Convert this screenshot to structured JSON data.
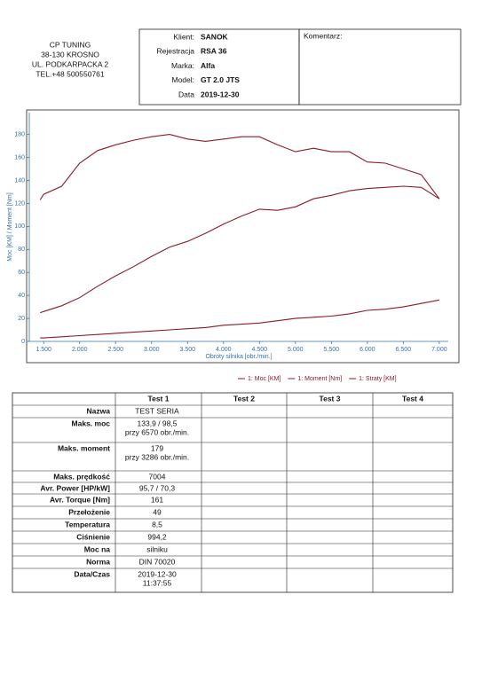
{
  "header": {
    "company": [
      "CP TUNING",
      "38-130 KROSNO",
      "UL. PODKARPACKA 2",
      "TEL.+48 500550761"
    ],
    "fields": [
      {
        "label": "Klient:",
        "value": "SANOK"
      },
      {
        "label": "Rejestracja",
        "value": "RSA 36"
      },
      {
        "label": "Marka:",
        "value": "Alfa"
      },
      {
        "label": "Model:",
        "value": "GT 2.0 JTS"
      },
      {
        "label": "Data",
        "value": "2019-12-30"
      }
    ],
    "comment": "Komentarz:"
  },
  "chart_data": {
    "type": "line",
    "x_label": "Obroty silnika [obr./min.]",
    "y_label": "Moc [KM] / Moment [Nm]",
    "x": [
      1450,
      1500,
      1750,
      2000,
      2250,
      2500,
      2750,
      3000,
      3250,
      3500,
      3750,
      4000,
      4250,
      4500,
      4750,
      5000,
      5250,
      5500,
      5750,
      6000,
      6250,
      6500,
      6750,
      7000
    ],
    "series": [
      {
        "name": "1: Moc [KM]",
        "color": "#8b1a2a",
        "values": [
          25,
          26,
          31,
          38,
          48,
          57,
          65,
          74,
          82,
          87,
          94,
          102,
          109,
          115,
          114,
          117,
          124,
          127,
          131,
          133,
          134,
          135,
          134,
          124
        ]
      },
      {
        "name": "1: Moment [Nm]",
        "color": "#8b1a2a",
        "values": [
          123,
          128,
          135,
          155,
          166,
          171,
          175,
          178,
          180,
          176,
          174,
          176,
          178,
          178,
          171,
          165,
          168,
          165,
          165,
          156,
          155,
          150,
          145,
          124
        ]
      },
      {
        "name": "1: Straty [KM]",
        "color": "#8b1a2a",
        "values": [
          3,
          3,
          4,
          5,
          6,
          7,
          8,
          9,
          10,
          11,
          12,
          14,
          15,
          16,
          18,
          20,
          21,
          22,
          24,
          27,
          28,
          30,
          33,
          36
        ]
      }
    ],
    "xlim": [
      1300,
      7125
    ],
    "ylim": [
      0,
      199
    ],
    "xticks": [
      {
        "value": 1500,
        "label": "1.500"
      },
      {
        "value": 2000,
        "label": "2.000"
      },
      {
        "value": 2500,
        "label": "2.500"
      },
      {
        "value": 3000,
        "label": "3.000"
      },
      {
        "value": 3500,
        "label": "3.500"
      },
      {
        "value": 4000,
        "label": "4.000"
      },
      {
        "value": 4500,
        "label": "4.500"
      },
      {
        "value": 5000,
        "label": "5.000"
      },
      {
        "value": 5500,
        "label": "5.500"
      },
      {
        "value": 6000,
        "label": "6.000"
      },
      {
        "value": 6500,
        "label": "6.500"
      },
      {
        "value": 7000,
        "label": "7.000"
      }
    ],
    "yticks": [
      0,
      20,
      40,
      60,
      80,
      100,
      120,
      140,
      160,
      180
    ]
  },
  "table": {
    "columns": [
      "Test 1",
      "Test 2",
      "Test 3",
      "Test 4"
    ],
    "rows": [
      {
        "label": "Nazwa",
        "value": [
          "TEST SERIA"
        ]
      },
      {
        "label": "Maks. moc",
        "value": [
          "133,9 / 98,5",
          "przy 6570 obr./min."
        ]
      },
      {
        "label": "Maks. moment",
        "value": [
          "179",
          "przy 3286 obr./min."
        ]
      },
      {
        "label": "Maks. prędkość",
        "value": [
          "7004"
        ]
      },
      {
        "label": "Avr. Power [HP/kW]",
        "value": [
          "95,7 / 70,3"
        ]
      },
      {
        "label": "Avr. Torque [Nm]",
        "value": [
          "161"
        ]
      },
      {
        "label": "Przełożenie",
        "value": [
          "49"
        ]
      },
      {
        "label": "Temperatura",
        "value": [
          "8,5"
        ]
      },
      {
        "label": "Ciśnienie",
        "value": [
          "994,2"
        ]
      },
      {
        "label": "Moc na",
        "value": [
          "silniku"
        ]
      },
      {
        "label": "Norma",
        "value": [
          "DIN 70020"
        ]
      },
      {
        "label": "Data/Czas",
        "value": [
          "2019-12-30",
          "11:37:55"
        ]
      }
    ]
  }
}
